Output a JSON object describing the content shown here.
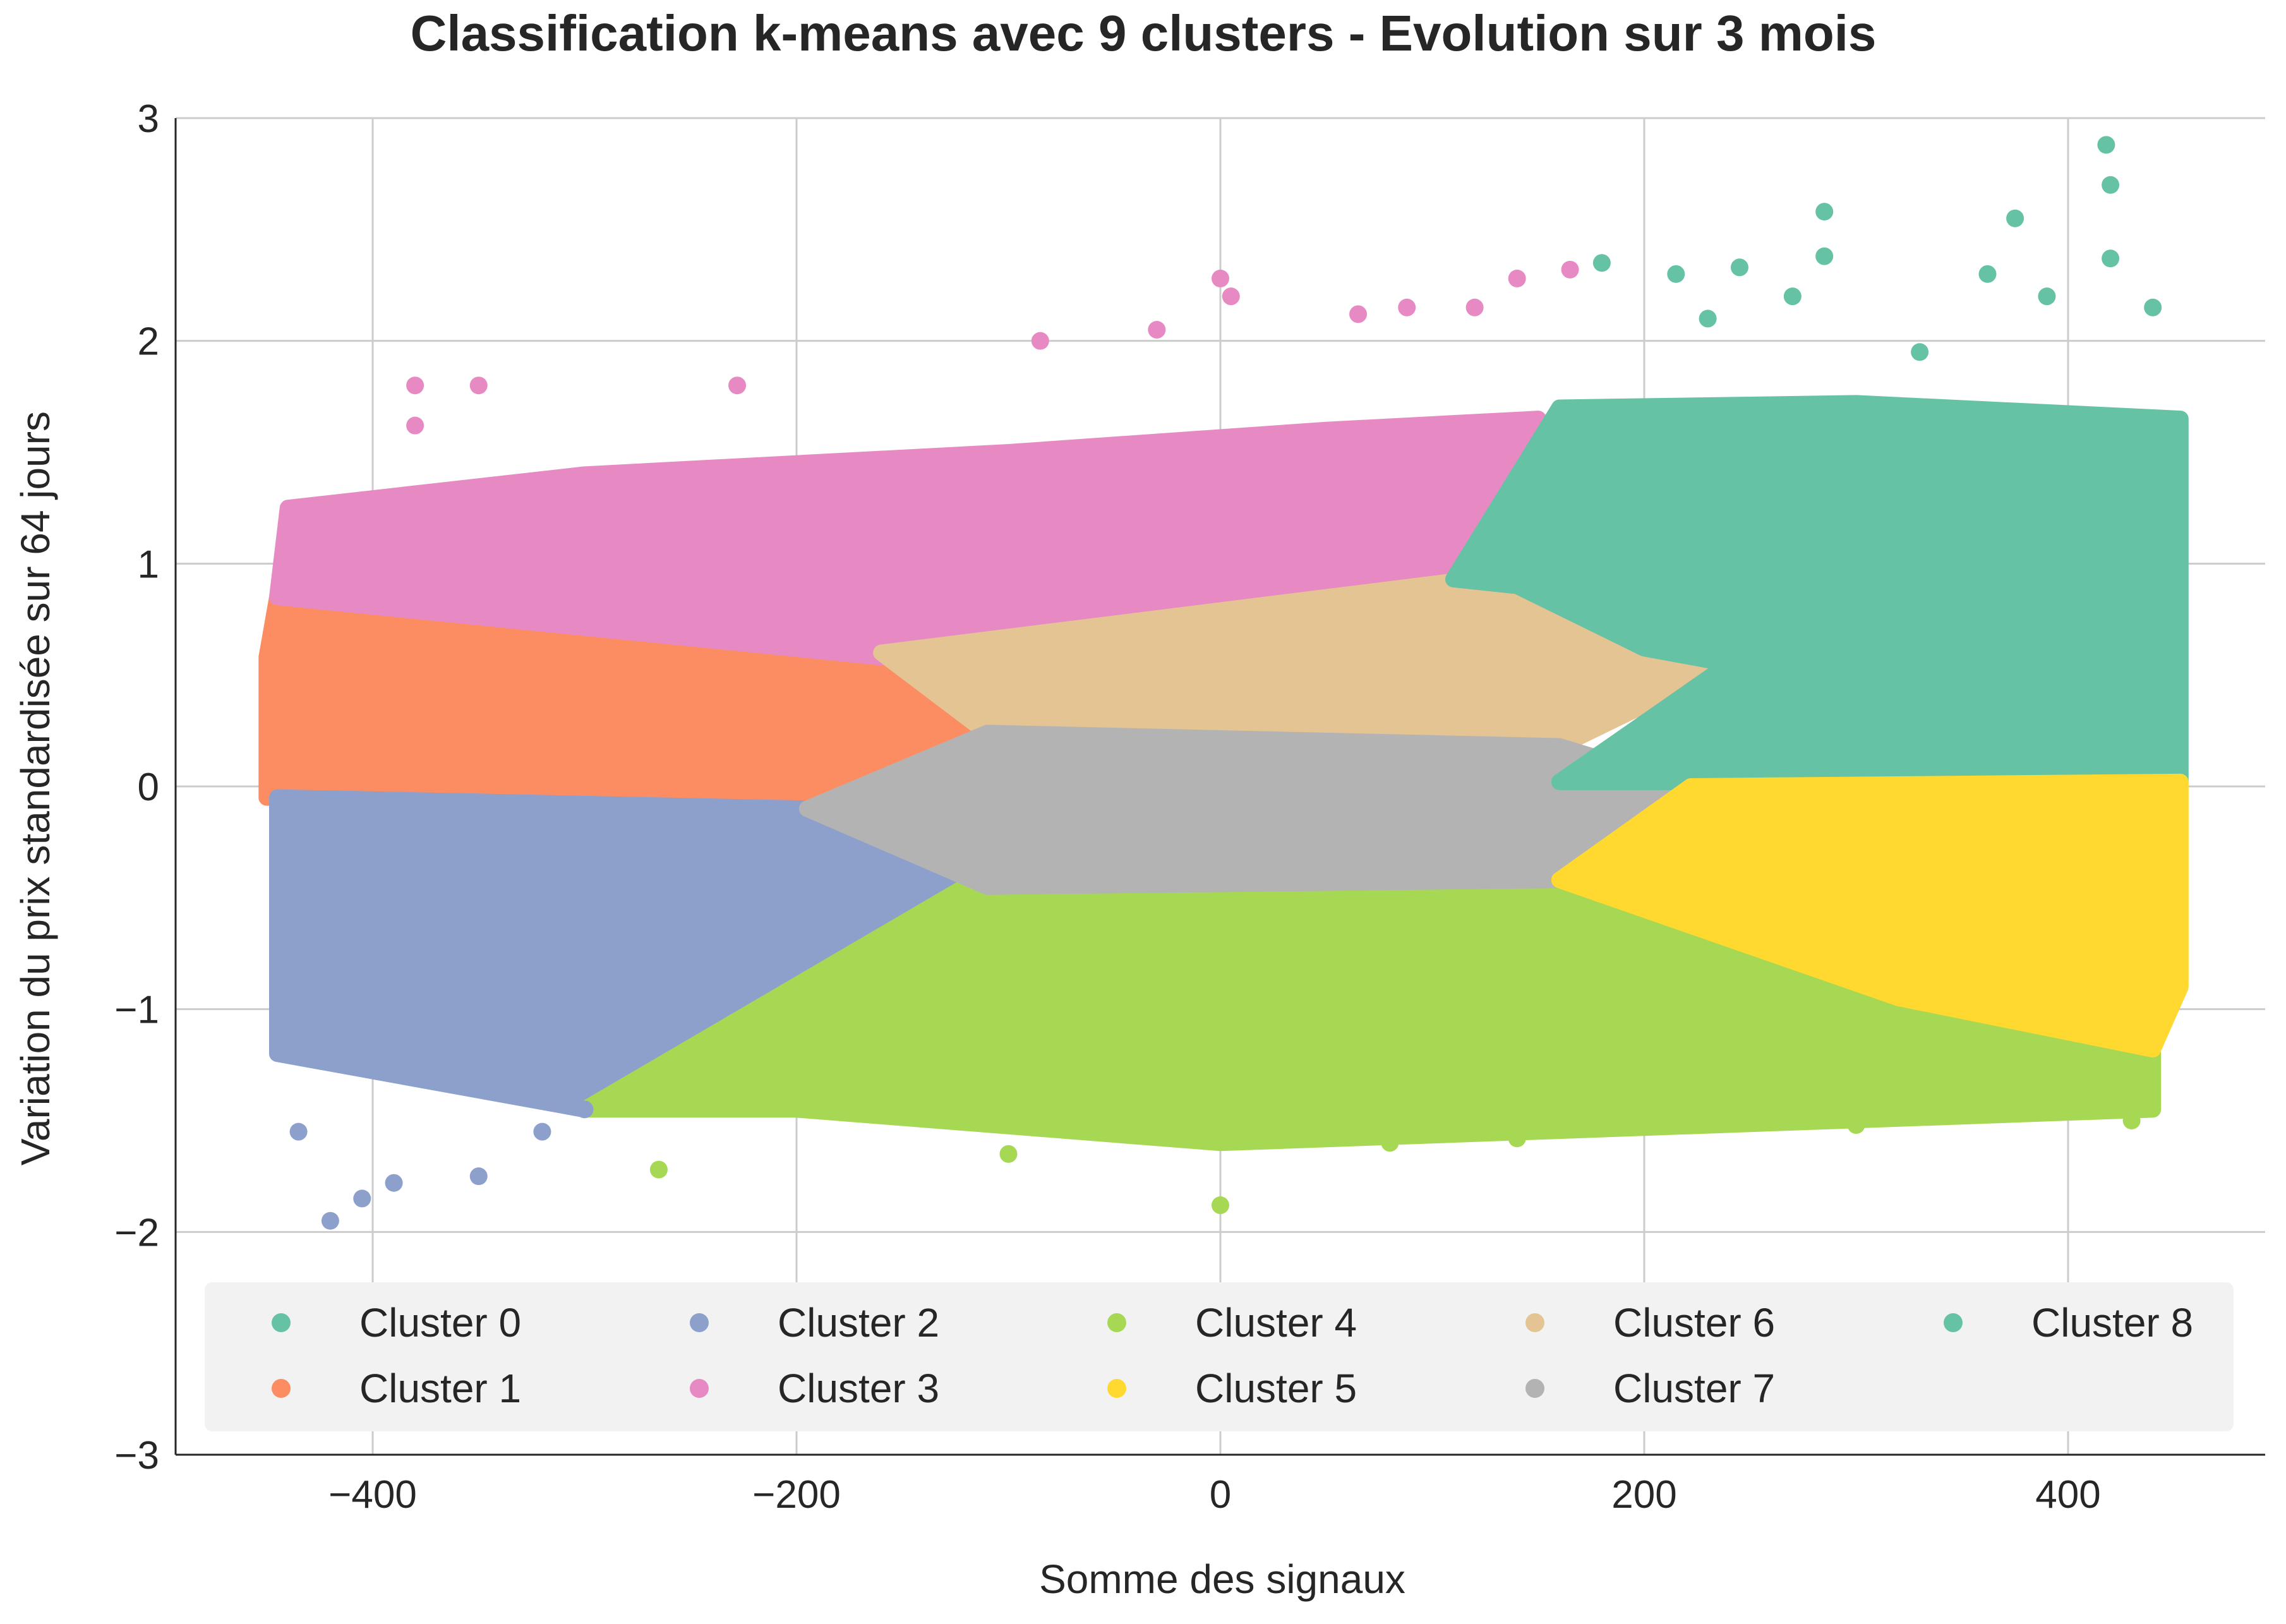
{
  "chart_data": {
    "type": "scatter",
    "title": "Classification k-means avec 9 clusters - Evolution sur 3 mois",
    "xlabel": "Somme des signaux",
    "ylabel": "Variation du prix standardisée sur 64 jours",
    "xlim": [
      -493,
      493
    ],
    "ylim": [
      -3,
      3
    ],
    "x_ticks": [
      -400,
      -200,
      0,
      200,
      400
    ],
    "x_tick_labels": [
      "−400",
      "−200",
      "0",
      "200",
      "400"
    ],
    "y_ticks": [
      -3,
      -2,
      -1,
      0,
      1,
      2,
      3
    ],
    "y_tick_labels": [
      "−3",
      "−2",
      "−1",
      "0",
      "1",
      "2",
      "3"
    ],
    "grid": true,
    "legend": {
      "placement": "lower-center",
      "columns": 5
    },
    "series": [
      {
        "name": "Cluster 0",
        "color": "#66c2a5",
        "region": [
          [
            110,
            0.93
          ],
          [
            160,
            1.7
          ],
          [
            300,
            1.72
          ],
          [
            453,
            1.65
          ],
          [
            453,
            0.02
          ],
          [
            160,
            0.02
          ],
          [
            240,
            0.55
          ],
          [
            200,
            0.62
          ],
          [
            140,
            0.9
          ]
        ],
        "outliers": [
          [
            180,
            2.35
          ],
          [
            215,
            2.3
          ],
          [
            245,
            2.33
          ],
          [
            285,
            2.58
          ],
          [
            285,
            2.38
          ],
          [
            375,
            2.55
          ],
          [
            418,
            2.88
          ],
          [
            420,
            2.7
          ],
          [
            420,
            2.37
          ],
          [
            362,
            2.3
          ],
          [
            390,
            2.2
          ],
          [
            440,
            2.15
          ],
          [
            270,
            2.2
          ],
          [
            230,
            2.1
          ],
          [
            330,
            1.95
          ]
        ]
      },
      {
        "name": "Cluster 1",
        "color": "#fc8d62",
        "region": [
          [
            -450,
            0.58
          ],
          [
            -445,
            0.85
          ],
          [
            -160,
            0.58
          ],
          [
            -115,
            0.2
          ],
          [
            -140,
            -0.05
          ],
          [
            -450,
            -0.05
          ]
        ],
        "outliers": []
      },
      {
        "name": "Cluster 2",
        "color": "#8da0cb",
        "region": [
          [
            -445,
            -0.05
          ],
          [
            -195,
            -0.1
          ],
          [
            -115,
            -0.42
          ],
          [
            -300,
            -1.45
          ],
          [
            -445,
            -1.2
          ]
        ],
        "outliers": [
          [
            -420,
            -1.95
          ],
          [
            -405,
            -1.85
          ],
          [
            -390,
            -1.78
          ],
          [
            -350,
            -1.75
          ],
          [
            -435,
            -1.55
          ],
          [
            -320,
            -1.55
          ],
          [
            -300,
            -1.45
          ]
        ]
      },
      {
        "name": "Cluster 3",
        "color": "#e78ac3",
        "region": [
          [
            -445,
            0.85
          ],
          [
            -440,
            1.25
          ],
          [
            -300,
            1.4
          ],
          [
            -100,
            1.5
          ],
          [
            50,
            1.6
          ],
          [
            150,
            1.65
          ],
          [
            110,
            0.93
          ],
          [
            0,
            0.82
          ],
          [
            -160,
            0.58
          ]
        ],
        "outliers": [
          [
            -380,
            1.8
          ],
          [
            -350,
            1.8
          ],
          [
            -228,
            1.8
          ],
          [
            -85,
            2.0
          ],
          [
            -30,
            2.05
          ],
          [
            0,
            2.28
          ],
          [
            5,
            2.2
          ],
          [
            65,
            2.12
          ],
          [
            88,
            2.15
          ],
          [
            120,
            2.15
          ],
          [
            140,
            2.28
          ],
          [
            165,
            2.32
          ],
          [
            -380,
            1.62
          ]
        ]
      },
      {
        "name": "Cluster 4",
        "color": "#a6d854",
        "region": [
          [
            -300,
            -1.45
          ],
          [
            -115,
            -0.42
          ],
          [
            160,
            -0.42
          ],
          [
            320,
            -0.9
          ],
          [
            440,
            -1.2
          ],
          [
            440,
            -1.45
          ],
          [
            0,
            -1.6
          ],
          [
            -200,
            -1.45
          ]
        ],
        "outliers": [
          [
            0,
            -1.88
          ],
          [
            -265,
            -1.72
          ],
          [
            -100,
            -1.65
          ],
          [
            140,
            -1.58
          ],
          [
            300,
            -1.52
          ],
          [
            430,
            -1.5
          ],
          [
            80,
            -1.6
          ]
        ]
      },
      {
        "name": "Cluster 5",
        "color": "#ffd92f",
        "region": [
          [
            160,
            -0.42
          ],
          [
            222,
            0.0
          ],
          [
            453,
            0.02
          ],
          [
            453,
            -0.9
          ],
          [
            440,
            -1.18
          ],
          [
            320,
            -0.95
          ]
        ],
        "outliers": []
      },
      {
        "name": "Cluster 6",
        "color": "#e5c494",
        "region": [
          [
            -160,
            0.6
          ],
          [
            110,
            0.92
          ],
          [
            240,
            0.55
          ],
          [
            160,
            0.18
          ],
          [
            -110,
            0.24
          ]
        ],
        "outliers": []
      },
      {
        "name": "Cluster 7",
        "color": "#b3b3b3",
        "region": [
          [
            -195,
            -0.1
          ],
          [
            -110,
            0.24
          ],
          [
            160,
            0.18
          ],
          [
            222,
            0.0
          ],
          [
            160,
            -0.42
          ],
          [
            -110,
            -0.45
          ]
        ],
        "outliers": []
      },
      {
        "name": "Cluster 8",
        "color": "#66c2a5",
        "region": [],
        "outliers": []
      }
    ]
  }
}
